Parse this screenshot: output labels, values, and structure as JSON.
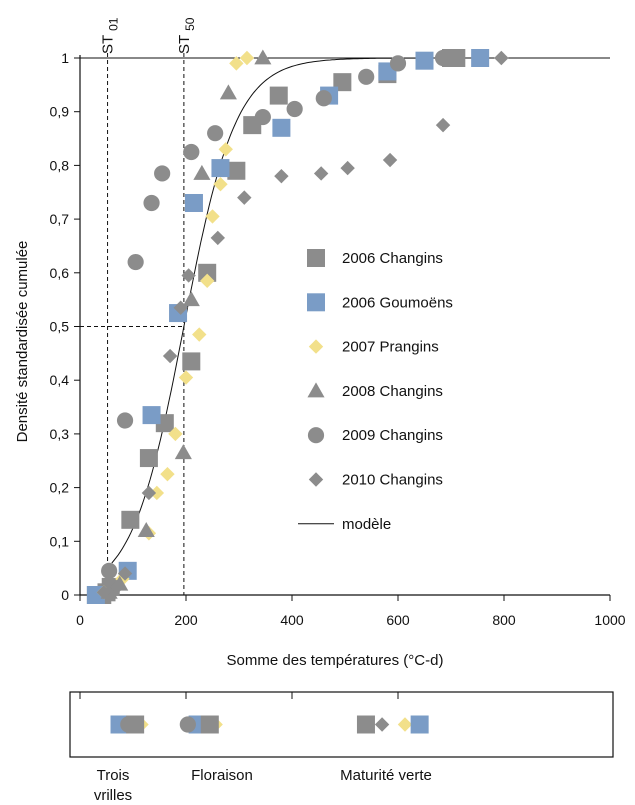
{
  "chart_data": {
    "type": "scatter",
    "xlabel": "Somme des températures (°C-d)",
    "ylabel": "Densité standardisée cumulée",
    "xlim": [
      0,
      1000
    ],
    "ylim": [
      0,
      1
    ],
    "xticks": [
      0,
      200,
      400,
      600,
      800,
      1000
    ],
    "yticks": [
      0,
      0.1,
      0.2,
      0.3,
      0.4,
      0.5,
      0.6,
      0.7,
      0.8,
      0.9,
      1
    ],
    "ytick_labels": [
      "0",
      "0,1",
      "0,2",
      "0,3",
      "0,4",
      "0,5",
      "0,6",
      "0,7",
      "0,8",
      "0,9",
      "1"
    ],
    "grid": false,
    "legend_position": "right",
    "reference_lines": [
      {
        "label_main": "ST",
        "label_sub": "01",
        "x": 52,
        "y": 0
      },
      {
        "label_main": "ST",
        "label_sub": "50",
        "x": 196,
        "y": 0.5
      }
    ],
    "colors": {
      "grey": "#8c8c8c",
      "blue": "#7a9cc6",
      "yellow": "#f2e08a"
    },
    "series": [
      {
        "name": "2006 Changins",
        "marker": "square",
        "color": "#8c8c8c",
        "points": [
          [
            30,
            0
          ],
          [
            42,
            0
          ],
          [
            50,
            0.005
          ],
          [
            58,
            0.015
          ],
          [
            95,
            0.14
          ],
          [
            130,
            0.255
          ],
          [
            160,
            0.32
          ],
          [
            210,
            0.435
          ],
          [
            240,
            0.6
          ],
          [
            295,
            0.79
          ],
          [
            325,
            0.875
          ],
          [
            375,
            0.93
          ],
          [
            495,
            0.955
          ],
          [
            580,
            0.97
          ],
          [
            700,
            1
          ],
          [
            710,
            1
          ]
        ]
      },
      {
        "name": "2006 Goumoëns",
        "marker": "square",
        "color": "#7a9cc6",
        "points": [
          [
            30,
            0
          ],
          [
            90,
            0.045
          ],
          [
            135,
            0.335
          ],
          [
            185,
            0.525
          ],
          [
            215,
            0.73
          ],
          [
            265,
            0.795
          ],
          [
            380,
            0.87
          ],
          [
            470,
            0.93
          ],
          [
            580,
            0.975
          ],
          [
            650,
            0.995
          ],
          [
            755,
            1
          ]
        ]
      },
      {
        "name": "2007 Prangins",
        "marker": "diamond",
        "color": "#f2e08a",
        "points": [
          [
            45,
            0.005
          ],
          [
            80,
            0.03
          ],
          [
            130,
            0.115
          ],
          [
            145,
            0.19
          ],
          [
            165,
            0.225
          ],
          [
            180,
            0.3
          ],
          [
            200,
            0.405
          ],
          [
            225,
            0.485
          ],
          [
            240,
            0.585
          ],
          [
            250,
            0.705
          ],
          [
            265,
            0.765
          ],
          [
            275,
            0.83
          ],
          [
            295,
            0.99
          ],
          [
            315,
            1
          ]
        ]
      },
      {
        "name": "2008 Changins",
        "marker": "triangle",
        "color": "#8c8c8c",
        "points": [
          [
            55,
            0.005
          ],
          [
            75,
            0.02
          ],
          [
            125,
            0.12
          ],
          [
            195,
            0.265
          ],
          [
            210,
            0.55
          ],
          [
            230,
            0.785
          ],
          [
            280,
            0.935
          ],
          [
            345,
            1
          ]
        ]
      },
      {
        "name": "2009 Changins",
        "marker": "circle",
        "color": "#8c8c8c",
        "points": [
          [
            55,
            0.045
          ],
          [
            85,
            0.325
          ],
          [
            105,
            0.62
          ],
          [
            135,
            0.73
          ],
          [
            155,
            0.785
          ],
          [
            210,
            0.825
          ],
          [
            255,
            0.86
          ],
          [
            345,
            0.89
          ],
          [
            405,
            0.905
          ],
          [
            460,
            0.925
          ],
          [
            540,
            0.965
          ],
          [
            600,
            0.99
          ],
          [
            685,
            1
          ]
        ]
      },
      {
        "name": "2010 Changins",
        "marker": "diamond",
        "color": "#8c8c8c",
        "points": [
          [
            45,
            0.005
          ],
          [
            70,
            0.015
          ],
          [
            85,
            0.04
          ],
          [
            130,
            0.19
          ],
          [
            170,
            0.445
          ],
          [
            190,
            0.535
          ],
          [
            205,
            0.595
          ],
          [
            260,
            0.665
          ],
          [
            310,
            0.74
          ],
          [
            380,
            0.78
          ],
          [
            455,
            0.785
          ],
          [
            505,
            0.795
          ],
          [
            585,
            0.81
          ],
          [
            685,
            0.875
          ],
          [
            795,
            1
          ]
        ]
      }
    ],
    "model": {
      "name": "modèle",
      "type": "logistic",
      "x0": 196,
      "k": 0.0203
    },
    "stage_strip": {
      "markers": [
        {
          "x": 40,
          "marker": "square",
          "color": "#7a9cc6"
        },
        {
          "x": 58,
          "marker": "circle",
          "color": "#8c8c8c"
        },
        {
          "x": 85,
          "marker": "diamond",
          "color": "#f2e08a"
        },
        {
          "x": 72,
          "marker": "square",
          "color": "#8c8c8c"
        },
        {
          "x": 237,
          "marker": "diamond",
          "color": "#f2e08a"
        },
        {
          "x": 200,
          "marker": "square",
          "color": "#7a9cc6"
        },
        {
          "x": 180,
          "marker": "circle",
          "color": "#8c8c8c"
        },
        {
          "x": 225,
          "marker": "square",
          "color": "#8c8c8c"
        },
        {
          "x": 545,
          "marker": "square",
          "color": "#8c8c8c"
        },
        {
          "x": 578,
          "marker": "diamond",
          "color": "#8c8c8c"
        },
        {
          "x": 625,
          "marker": "diamond",
          "color": "#f2e08a"
        },
        {
          "x": 655,
          "marker": "square",
          "color": "#7a9cc6"
        }
      ],
      "labels": [
        {
          "lines": [
            "Trois",
            "vrilles"
          ],
          "x": 52
        },
        {
          "lines": [
            "Floraison"
          ],
          "x": 196
        },
        {
          "lines": [
            "Maturité verte"
          ],
          "x": 510
        }
      ]
    }
  }
}
